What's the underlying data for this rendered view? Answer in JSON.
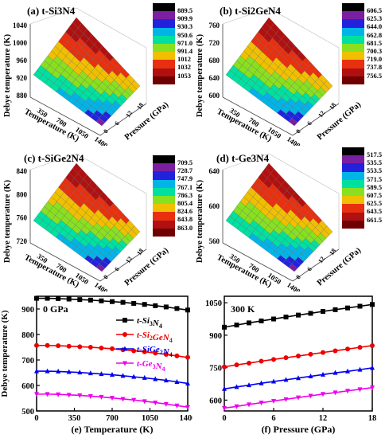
{
  "surface_panels": [
    {
      "id": "a",
      "title": "(a) t-Si3N4",
      "ylabel": "Debye temperature (K)",
      "xlabel": "Temperature (K)",
      "zlabel": "Pressure (GPa)",
      "yticks": [
        "880",
        "920",
        "960",
        "1000",
        "1040"
      ],
      "xticks": [
        "350",
        "700",
        "1050",
        "1400"
      ],
      "zticks": [
        "0",
        "6",
        "12",
        "18"
      ],
      "colorbar": [
        "889.5",
        "909.9",
        "930.3",
        "950.6",
        "971.0",
        "991.4",
        "1012",
        "1032",
        "1053"
      ]
    },
    {
      "id": "b",
      "title": "(b) t-Si2GeN4",
      "ylabel": "Debye temperature (K)",
      "xlabel": "Temperature (K)",
      "zlabel": "Pressure (GPa)",
      "yticks": [
        "600",
        "640",
        "680",
        "720",
        "760"
      ],
      "xticks": [
        "350",
        "700",
        "1050",
        "1400"
      ],
      "zticks": [
        "0",
        "6",
        "12",
        "18"
      ],
      "colorbar": [
        "606.5",
        "625.3",
        "644.0",
        "662.8",
        "681.5",
        "700.3",
        "719.0",
        "737.8",
        "756.5"
      ]
    },
    {
      "id": "c",
      "title": "(c) t-SiGe2N4",
      "ylabel": "Debye temperature (K)",
      "xlabel": "Temperature (K)",
      "zlabel": "Pressure (GPa)",
      "yticks": [
        "720",
        "760",
        "800",
        "840"
      ],
      "xticks": [
        "350",
        "700",
        "1050",
        "1400"
      ],
      "zticks": [
        "0",
        "6",
        "12",
        "18"
      ],
      "colorbar": [
        "709.5",
        "728.7",
        "747.9",
        "767.1",
        "786.3",
        "805.4",
        "824.6",
        "843.8",
        "863.0"
      ]
    },
    {
      "id": "d",
      "title": "(d) t-Ge3N4",
      "ylabel": "Debye temperature (K)",
      "xlabel": "Temperature (K)",
      "zlabel": "Pressure (GPa)",
      "yticks": [
        "560",
        "600",
        "640"
      ],
      "xticks": [
        "350",
        "700",
        "1050",
        "1400"
      ],
      "zticks": [
        "0",
        "6",
        "12",
        "18"
      ],
      "colorbar": [
        "517.5",
        "535.5",
        "553.5",
        "571.5",
        "589.5",
        "607.5",
        "625.5",
        "643.5",
        "661.5"
      ]
    }
  ],
  "colorbar_colors": [
    "#000000",
    "#7b1fa2",
    "#2222dd",
    "#00b4e8",
    "#00e0a0",
    "#88e020",
    "#f0c000",
    "#e83010",
    "#b01010",
    "#700000"
  ],
  "chart_data": [
    {
      "type": "line",
      "title": "0 GPa",
      "xlabel": "(e) Temperature (K)",
      "ylabel": "Debye temperature (K)",
      "xlim": [
        0,
        1400
      ],
      "ylim": [
        500,
        950
      ],
      "xticks": [
        0,
        350,
        700,
        1050,
        1400
      ],
      "yticks": [
        500,
        600,
        700,
        800,
        900
      ],
      "legend": "right",
      "x": [
        0,
        100,
        200,
        300,
        400,
        500,
        600,
        700,
        800,
        900,
        1000,
        1100,
        1200,
        1300,
        1400
      ],
      "series": [
        {
          "name": "t-Si3N4",
          "color": "#000000",
          "marker": "square",
          "values": [
            942,
            942,
            941,
            939,
            937,
            935,
            932,
            929,
            926,
            922,
            918,
            913,
            908,
            902,
            896
          ]
        },
        {
          "name": "t-Si2GeN4",
          "color": "#ee0000",
          "marker": "circle",
          "values": [
            757,
            757,
            756,
            754,
            752,
            750,
            747,
            744,
            740,
            736,
            732,
            727,
            722,
            716,
            710
          ]
        },
        {
          "name": "t-SiGe2N4",
          "color": "#0000ee",
          "marker": "triangle",
          "values": [
            656,
            656,
            655,
            653,
            651,
            648,
            645,
            642,
            638,
            634,
            630,
            625,
            620,
            614,
            608
          ]
        },
        {
          "name": "t-Ge3N4",
          "color": "#ee00ee",
          "marker": "triangle-down",
          "values": [
            566,
            566,
            565,
            563,
            561,
            558,
            555,
            551,
            547,
            543,
            538,
            533,
            527,
            521,
            515
          ]
        }
      ]
    },
    {
      "type": "line",
      "title": "300 K",
      "xlabel": "(f) Pressure (GPa)",
      "ylabel": "",
      "xlim": [
        0,
        18
      ],
      "ylim": [
        550,
        1080
      ],
      "xticks": [
        0,
        6,
        12,
        18
      ],
      "yticks": [
        600,
        750,
        900,
        1050
      ],
      "x": [
        0,
        1.5,
        3,
        4.5,
        6,
        7.5,
        9,
        10.5,
        12,
        13.5,
        15,
        16.5,
        18
      ],
      "series": [
        {
          "name": "t-Si3N4",
          "color": "#000000",
          "marker": "square",
          "values": [
            937,
            947,
            957,
            966,
            975,
            984,
            993,
            1001,
            1010,
            1018,
            1026,
            1034,
            1042
          ]
        },
        {
          "name": "t-Si2GeN4",
          "color": "#ee0000",
          "marker": "circle",
          "values": [
            754,
            763,
            771,
            780,
            788,
            796,
            804,
            812,
            820,
            828,
            836,
            844,
            852
          ]
        },
        {
          "name": "t-SiGe2N4",
          "color": "#0000ee",
          "marker": "triangle",
          "values": [
            652,
            661,
            669,
            678,
            686,
            694,
            702,
            710,
            718,
            726,
            733,
            741,
            749
          ]
        },
        {
          "name": "t-Ge3N4",
          "color": "#ee00ee",
          "marker": "triangle-down",
          "values": [
            563,
            571,
            580,
            588,
            596,
            604,
            612,
            620,
            628,
            635,
            643,
            650,
            658
          ]
        }
      ]
    }
  ]
}
